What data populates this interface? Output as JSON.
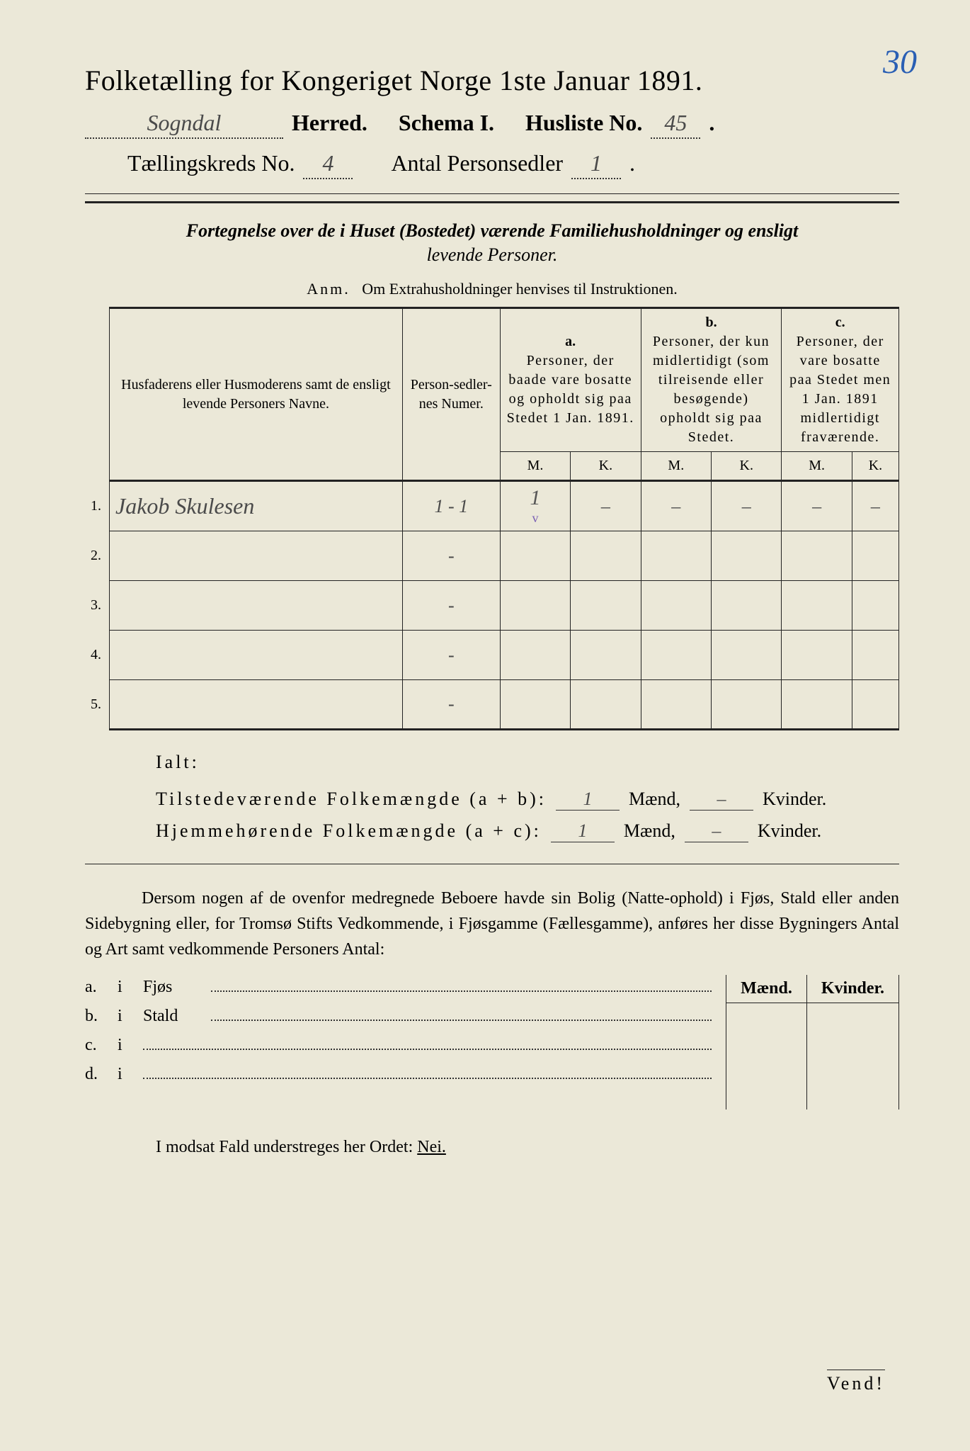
{
  "corner_page_number": "30",
  "title": "Folketælling for Kongeriget Norge 1ste Januar 1891.",
  "line2": {
    "herred_value": "Sogndal",
    "herred_label": "Herred.",
    "schema_label": "Schema I.",
    "husliste_label": "Husliste No.",
    "husliste_value": "45",
    "husliste_period": "."
  },
  "line3": {
    "kreds_label": "Tællingskreds No.",
    "kreds_value": "4",
    "sedler_label": "Antal Personsedler",
    "sedler_value": "1",
    "period": "."
  },
  "subtitle1": "Fortegnelse over de i Huset (Bostedet) værende Familiehusholdninger og ensligt",
  "subtitle2": "levende Personer.",
  "anm_label": "Anm.",
  "anm_text": "Om Extrahusholdninger henvises til Instruktionen.",
  "table": {
    "head_name": "Husfaderens eller Husmoderens samt de ensligt levende Personers Navne.",
    "head_num": "Person-sedler-nes Numer.",
    "a_letter": "a.",
    "a_text": "Personer, der baade vare bosatte og opholdt sig paa Stedet 1 Jan. 1891.",
    "b_letter": "b.",
    "b_text": "Personer, der kun midlertidigt (som tilreisende eller besøgende) opholdt sig paa Stedet.",
    "c_letter": "c.",
    "c_text": "Personer, der vare bosatte paa Stedet men 1 Jan. 1891 midlertidigt fraværende.",
    "m": "M.",
    "k": "K.",
    "rows": [
      {
        "n": "1.",
        "name": "Jakob Skulesen",
        "num": "1 - 1",
        "aM": "1",
        "aK": "–",
        "bM": "–",
        "bK": "–",
        "cM": "–",
        "cK": "–",
        "mark": "v"
      },
      {
        "n": "2.",
        "name": "",
        "num": "-",
        "aM": "",
        "aK": "",
        "bM": "",
        "bK": "",
        "cM": "",
        "cK": ""
      },
      {
        "n": "3.",
        "name": "",
        "num": "-",
        "aM": "",
        "aK": "",
        "bM": "",
        "bK": "",
        "cM": "",
        "cK": ""
      },
      {
        "n": "4.",
        "name": "",
        "num": "-",
        "aM": "",
        "aK": "",
        "bM": "",
        "bK": "",
        "cM": "",
        "cK": ""
      },
      {
        "n": "5.",
        "name": "",
        "num": "-",
        "aM": "",
        "aK": "",
        "bM": "",
        "bK": "",
        "cM": "",
        "cK": ""
      }
    ]
  },
  "ialt": {
    "label": "Ialt:",
    "pres_label": "Tilstedeværende Folkemængde (a + b):",
    "home_label": "Hjemmehørende Folkemængde (a + c):",
    "maend": "Mænd,",
    "kvinder": "Kvinder.",
    "pres_m": "1",
    "pres_k": "–",
    "home_m": "1",
    "home_k": "–"
  },
  "para_text": "Dersom nogen af de ovenfor medregnede Beboere havde sin Bolig (Natte-ophold) i Fjøs, Stald eller anden Sidebygning eller, for Tromsø Stifts Vedkommende, i Fjøsgamme (Fællesgamme), anføres her disse Bygningers Antal og Art samt vedkommende Personers Antal:",
  "buildings": {
    "maend": "Mænd.",
    "kvinder": "Kvinder.",
    "rows": [
      {
        "l": "a.",
        "i": "i",
        "t": "Fjøs"
      },
      {
        "l": "b.",
        "i": "i",
        "t": "Stald"
      },
      {
        "l": "c.",
        "i": "i",
        "t": ""
      },
      {
        "l": "d.",
        "i": "i",
        "t": ""
      }
    ]
  },
  "nei_line_pre": "I modsat Fald understreges her Ordet: ",
  "nei_word": "Nei.",
  "vend": "Vend!"
}
